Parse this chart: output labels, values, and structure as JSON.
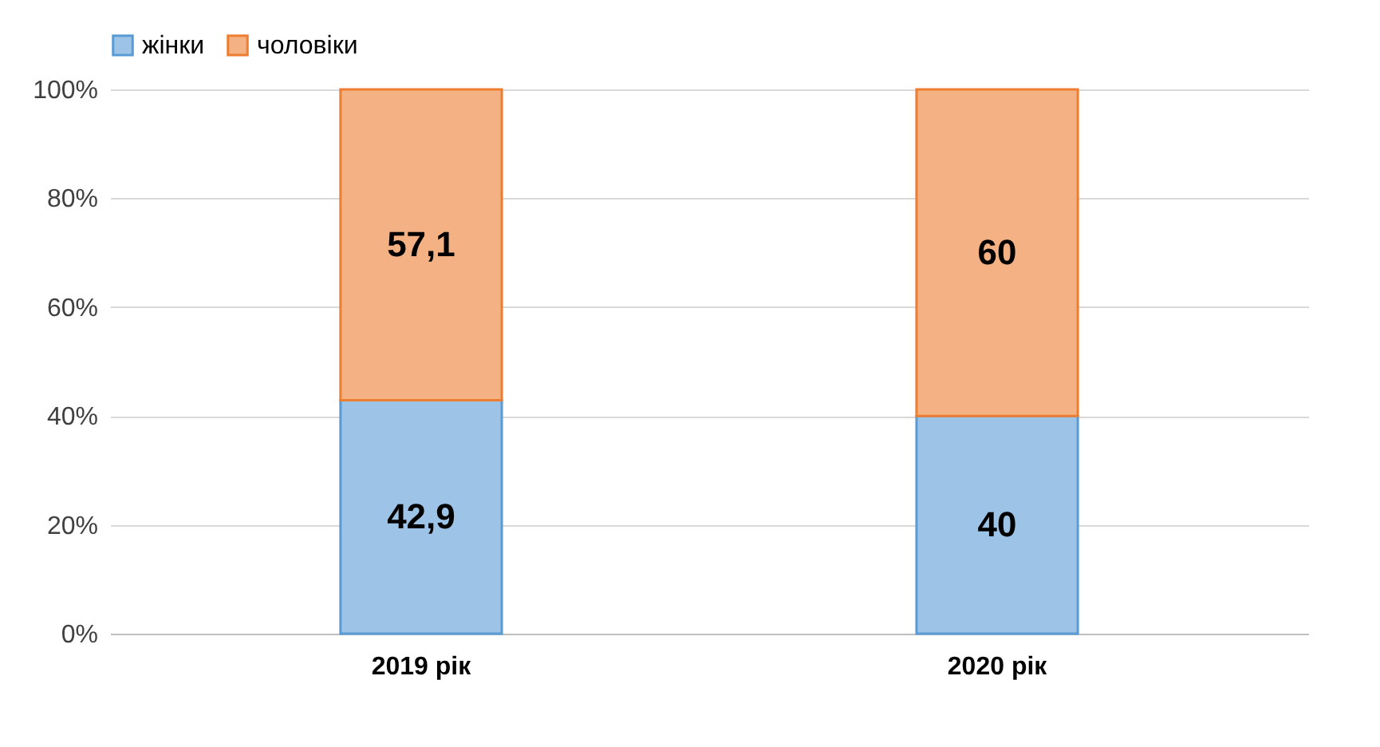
{
  "chart_data": {
    "type": "bar",
    "stacked": true,
    "categories": [
      "2019 рік",
      "2020 рік"
    ],
    "series": [
      {
        "name": "жінки",
        "color": "#9dc3e6",
        "values": [
          42.9,
          40
        ],
        "value_labels": [
          "42,9",
          "40"
        ]
      },
      {
        "name": "чоловіки",
        "color": "#f4b183",
        "values": [
          57.1,
          60
        ],
        "value_labels": [
          "57,1",
          "60"
        ]
      }
    ],
    "ylim": [
      0,
      100
    ],
    "yticks": [
      {
        "value": 0,
        "label": "0%"
      },
      {
        "value": 20,
        "label": "20%"
      },
      {
        "value": 40,
        "label": "40%"
      },
      {
        "value": 60,
        "label": "60%"
      },
      {
        "value": 80,
        "label": "80%"
      },
      {
        "value": 100,
        "label": "100%"
      }
    ],
    "grid": "y",
    "legend": "top"
  }
}
